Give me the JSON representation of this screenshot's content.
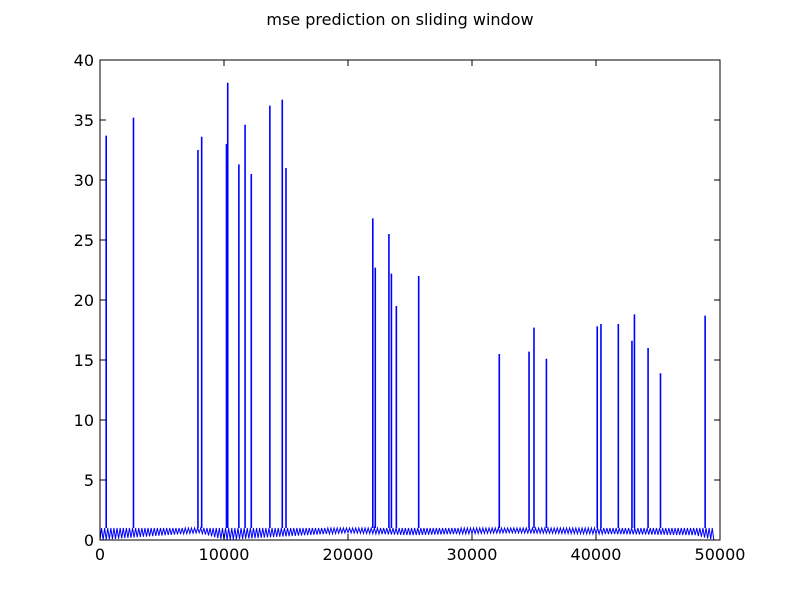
{
  "chart_data": {
    "type": "line",
    "title": "mse prediction on sliding window",
    "xlabel": "",
    "ylabel": "",
    "xlim": [
      0,
      50000
    ],
    "ylim": [
      0,
      40
    ],
    "xticks": [
      0,
      10000,
      20000,
      30000,
      40000,
      50000
    ],
    "xtick_labels": [
      "0",
      "10000",
      "20000",
      "30000",
      "40000",
      "50000"
    ],
    "yticks": [
      0,
      5,
      10,
      15,
      20,
      25,
      30,
      35,
      40
    ],
    "ytick_labels": [
      "0",
      "5",
      "10",
      "15",
      "20",
      "25",
      "30",
      "35",
      "40"
    ],
    "grid": false,
    "legend": "none",
    "x_data_end": 49500,
    "series": [
      {
        "color": "#0000ff",
        "baseline_oscillation_max": 1.0,
        "envelope_lower": [
          [
            0,
            0.0
          ],
          [
            8000,
            0.6
          ],
          [
            10000,
            0.0
          ],
          [
            20000,
            0.6
          ],
          [
            25000,
            0.4
          ],
          [
            33000,
            0.6
          ],
          [
            48000,
            0.4
          ],
          [
            49500,
            0.0
          ]
        ],
        "spikes": [
          [
            500,
            33.7
          ],
          [
            2700,
            35.2
          ],
          [
            7900,
            32.5
          ],
          [
            8200,
            33.6
          ],
          [
            10200,
            33.0
          ],
          [
            10300,
            38.1
          ],
          [
            11200,
            31.3
          ],
          [
            11700,
            34.6
          ],
          [
            12200,
            30.5
          ],
          [
            13700,
            36.2
          ],
          [
            14700,
            36.7
          ],
          [
            15000,
            31.0
          ],
          [
            22000,
            26.8
          ],
          [
            22200,
            22.7
          ],
          [
            23300,
            25.5
          ],
          [
            23500,
            22.2
          ],
          [
            23900,
            19.5
          ],
          [
            25700,
            22.0
          ],
          [
            32200,
            15.5
          ],
          [
            34600,
            15.7
          ],
          [
            35000,
            17.7
          ],
          [
            36000,
            15.1
          ],
          [
            40100,
            17.8
          ],
          [
            40400,
            18.0
          ],
          [
            41800,
            18.0
          ],
          [
            42900,
            16.6
          ],
          [
            43100,
            18.8
          ],
          [
            44200,
            16.0
          ],
          [
            45200,
            13.9
          ],
          [
            48800,
            18.7
          ]
        ]
      }
    ]
  }
}
